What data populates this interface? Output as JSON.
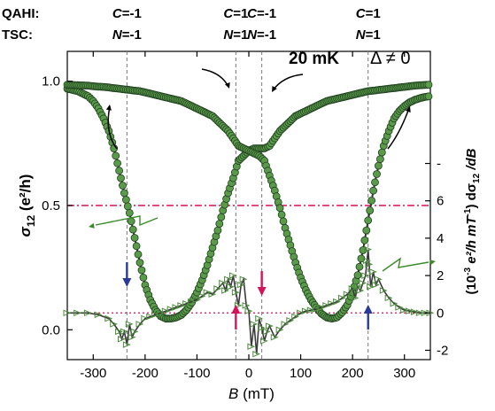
{
  "chart_data": {
    "type": "line",
    "title": "",
    "xlabel": {
      "var": "B",
      "unit": " (mT)"
    },
    "ylabel_left": {
      "main": "σ",
      "sub": "12",
      "rest": " (e²/h)"
    },
    "ylabel_right": {
      "pre": "(10",
      "sup1": "-3",
      "mid": " e²/h mT",
      "sup2": "-1",
      "post": ") dσ",
      "sub": "12",
      "end": " /dB"
    },
    "xlim": [
      -350,
      350
    ],
    "ylim_left": [
      -0.12,
      1.12
    ],
    "ylim_right": [
      -2.5,
      14.0
    ],
    "x_ticks": [
      -300,
      -200,
      -100,
      0,
      100,
      200,
      300
    ],
    "x_tick_labels": [
      "-300",
      "-200",
      "-100",
      "0",
      "100",
      "200",
      "300"
    ],
    "y_left_ticks": [
      0.0,
      0.5,
      1.0
    ],
    "y_left_tick_labels": [
      "0.0",
      "0.5",
      "1.0"
    ],
    "y_right_ticks": [
      -2,
      0,
      2,
      4,
      6,
      8
    ],
    "y_right_tick_labels": [
      "-2",
      "0",
      "2",
      "4",
      "6",
      "-"
    ],
    "annotations": {
      "temperature": "20 mK",
      "delta": "Δ ≠ 0",
      "row_labels": [
        "QAHI:",
        "TSC:"
      ],
      "phases": [
        {
          "top_var": "C",
          "top_val": "=-1",
          "bot_var": "N",
          "bot_val": "=-1",
          "x": -235
        },
        {
          "top_var": "C",
          "top_val": "=1",
          "bot_var": "N",
          "bot_val": "=1",
          "x": -25
        },
        {
          "top_var": "C",
          "top_val": "=-1",
          "bot_var": "N",
          "bot_val": "=-1",
          "x": 25
        },
        {
          "top_var": "C",
          "top_val": "=1",
          "bot_var": "N",
          "bot_val": "=1",
          "x": 230
        }
      ]
    },
    "vlines_x": [
      -235,
      -25,
      25,
      230
    ],
    "hline_half": 0.5,
    "hline_zero_right": 0,
    "series": [
      {
        "x": [
          -350,
          -340,
          -330,
          -320,
          -310,
          -300,
          -290,
          -280,
          -270,
          -260,
          -250,
          -240,
          -230,
          -220,
          -210,
          -200,
          -190,
          -180,
          -170,
          -160,
          -150,
          -140,
          -130,
          -120,
          -110,
          -100,
          -90,
          -80,
          -70,
          -60,
          -50,
          -40,
          -30,
          -20,
          -10,
          0,
          10,
          20,
          30,
          40,
          50,
          60,
          70,
          80,
          90,
          100,
          110,
          120,
          130,
          140,
          150,
          160,
          170,
          180,
          190,
          200,
          210,
          220,
          230,
          240,
          250,
          260,
          270,
          280,
          290,
          300,
          310,
          320,
          330,
          340,
          350
        ],
        "values": [
          0.97,
          0.965,
          0.96,
          0.95,
          0.94,
          0.92,
          0.89,
          0.85,
          0.8,
          0.73,
          0.64,
          0.55,
          0.47,
          0.37,
          0.27,
          0.18,
          0.12,
          0.08,
          0.055,
          0.045,
          0.045,
          0.05,
          0.06,
          0.08,
          0.11,
          0.15,
          0.2,
          0.26,
          0.33,
          0.4,
          0.48,
          0.55,
          0.61,
          0.68,
          0.7,
          0.72,
          0.73,
          0.73,
          0.73,
          0.74,
          0.77,
          0.8,
          0.82,
          0.84,
          0.86,
          0.87,
          0.88,
          0.89,
          0.9,
          0.91,
          0.92,
          0.925,
          0.93,
          0.935,
          0.94,
          0.945,
          0.95,
          0.955,
          0.96,
          0.962,
          0.965,
          0.967,
          0.97,
          0.972,
          0.975,
          0.977,
          0.98,
          0.982,
          0.984,
          0.985,
          0.986
        ]
      },
      {
        "x": [
          -350,
          -340,
          -330,
          -320,
          -310,
          -300,
          -290,
          -280,
          -270,
          -260,
          -250,
          -240,
          -230,
          -220,
          -210,
          -200,
          -190,
          -180,
          -170,
          -160,
          -150,
          -140,
          -130,
          -120,
          -110,
          -100,
          -90,
          -80,
          -70,
          -60,
          -50,
          -40,
          -30,
          -20,
          -10,
          0,
          10,
          20,
          30,
          40,
          50,
          60,
          70,
          80,
          90,
          100,
          110,
          120,
          130,
          140,
          150,
          160,
          170,
          180,
          190,
          200,
          210,
          220,
          230,
          240,
          250,
          260,
          270,
          280,
          290,
          300,
          310,
          320,
          330,
          340,
          350
        ],
        "values": [
          0.986,
          0.985,
          0.984,
          0.983,
          0.982,
          0.98,
          0.978,
          0.977,
          0.975,
          0.972,
          0.97,
          0.967,
          0.965,
          0.962,
          0.96,
          0.955,
          0.95,
          0.945,
          0.94,
          0.935,
          0.93,
          0.925,
          0.92,
          0.91,
          0.9,
          0.89,
          0.88,
          0.87,
          0.86,
          0.84,
          0.82,
          0.8,
          0.77,
          0.74,
          0.73,
          0.72,
          0.71,
          0.7,
          0.68,
          0.62,
          0.56,
          0.49,
          0.41,
          0.34,
          0.27,
          0.21,
          0.16,
          0.12,
          0.09,
          0.065,
          0.05,
          0.045,
          0.05,
          0.07,
          0.1,
          0.15,
          0.22,
          0.32,
          0.44,
          0.56,
          0.66,
          0.74,
          0.8,
          0.85,
          0.88,
          0.9,
          0.915,
          0.925,
          0.932,
          0.937,
          0.94
        ]
      },
      {
        "x": [
          -350,
          -330,
          -310,
          -290,
          -270,
          -260,
          -250,
          -245,
          -240,
          -235,
          -230,
          -225,
          -220,
          -210,
          -200,
          -190,
          -180,
          -170,
          -160,
          -150,
          -140,
          -130,
          -120,
          -110,
          -100,
          -90,
          -80,
          -70,
          -60,
          -50,
          -45,
          -40,
          -35,
          -30,
          -25,
          -20,
          -15,
          -10,
          -5,
          0,
          5,
          10,
          15,
          20,
          25,
          30,
          35,
          40,
          50,
          60,
          70,
          80,
          90,
          100,
          110,
          120,
          130,
          140,
          150,
          160,
          170,
          180,
          190,
          200,
          205,
          210,
          215,
          220,
          225,
          228,
          230,
          232,
          235,
          240,
          245,
          250,
          260,
          270,
          280,
          290,
          300,
          310,
          320,
          330,
          340,
          350
        ],
        "values": [
          0,
          0,
          0,
          -0.1,
          -0.3,
          -0.6,
          -1.0,
          -1.4,
          -1.0,
          -1.7,
          -0.6,
          -1.3,
          -1.0,
          -0.6,
          -0.3,
          -0.2,
          -0.1,
          0,
          0.1,
          0.2,
          0.3,
          0.4,
          0.5,
          0.6,
          0.7,
          0.9,
          1.1,
          1.0,
          1.3,
          1.6,
          1.2,
          1.8,
          1.4,
          2.0,
          1.1,
          0.4,
          1.5,
          1.8,
          0.4,
          0.1,
          -1.8,
          -0.6,
          -2.2,
          -0.3,
          -0.8,
          -1.5,
          -1.0,
          -0.7,
          -1.3,
          -0.9,
          -0.6,
          -0.4,
          -0.2,
          0.0,
          0.1,
          0.15,
          0.2,
          0.3,
          0.4,
          0.5,
          0.6,
          0.8,
          1.0,
          1.3,
          0.8,
          1.4,
          1.2,
          1.6,
          2.0,
          2.8,
          3.4,
          2.6,
          1.4,
          2.2,
          1.5,
          1.8,
          1.2,
          0.8,
          0.5,
          0.3,
          0.15,
          0.1,
          0.05,
          0,
          0,
          0
        ]
      }
    ]
  }
}
